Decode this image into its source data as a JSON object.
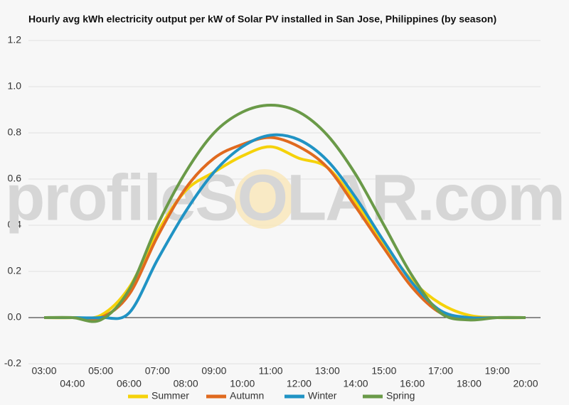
{
  "chart_data": {
    "type": "line",
    "title": "Hourly avg kWh electricity output per kW of Solar PV installed in San Jose, Philippines (by season)",
    "watermark": "profileSOLAR.com",
    "categories": [
      "03:00",
      "04:00",
      "05:00",
      "06:00",
      "07:00",
      "08:00",
      "09:00",
      "10:00",
      "11:00",
      "12:00",
      "13:00",
      "14:00",
      "15:00",
      "16:00",
      "17:00",
      "18:00",
      "19:00",
      "20:00"
    ],
    "series": [
      {
        "name": "Summer",
        "color": "#f5d20a",
        "values": [
          0,
          0,
          0.01,
          0.13,
          0.37,
          0.55,
          0.63,
          0.7,
          0.74,
          0.69,
          0.65,
          0.5,
          0.32,
          0.16,
          0.06,
          0.01,
          0,
          0
        ]
      },
      {
        "name": "Autumn",
        "color": "#e06a1f",
        "values": [
          0,
          0,
          0,
          0.1,
          0.35,
          0.56,
          0.69,
          0.75,
          0.78,
          0.74,
          0.65,
          0.48,
          0.3,
          0.13,
          0.02,
          0,
          0,
          0
        ]
      },
      {
        "name": "Winter",
        "color": "#2093c4",
        "values": [
          0,
          0,
          0,
          0.02,
          0.25,
          0.46,
          0.63,
          0.74,
          0.79,
          0.77,
          0.68,
          0.52,
          0.33,
          0.15,
          0.03,
          0,
          0,
          0
        ]
      },
      {
        "name": "Spring",
        "color": "#6a9a48",
        "values": [
          0,
          0,
          -0.01,
          0.12,
          0.4,
          0.63,
          0.8,
          0.89,
          0.92,
          0.89,
          0.79,
          0.62,
          0.4,
          0.18,
          0.02,
          -0.01,
          0,
          0
        ]
      }
    ],
    "ylim": [
      -0.2,
      1.2
    ],
    "yticks": [
      -0.2,
      {
        "value": 0,
        "label": "0.0"
      },
      0.2,
      0.4,
      0.6,
      0.8,
      {
        "value": 1,
        "label": "1.0"
      },
      1.2
    ],
    "grid": true,
    "legend": "bottom"
  }
}
